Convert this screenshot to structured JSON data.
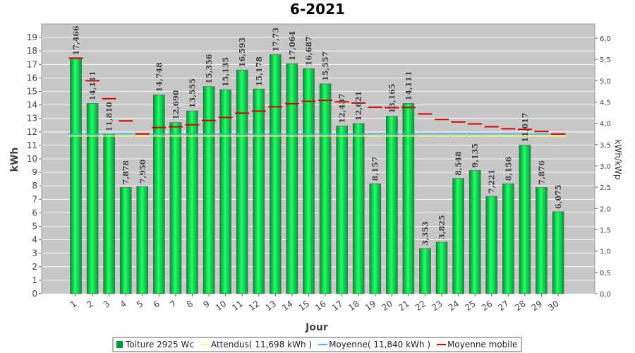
{
  "chart_data": {
    "type": "bar",
    "title": "6-2021",
    "xlabel": "Jour",
    "ylabel": "kWh",
    "y2label": "kWh/kWp",
    "ylim": [
      0,
      20
    ],
    "y_ticks": [
      "0",
      "1",
      "2",
      "3",
      "4",
      "5",
      "6",
      "7",
      "8",
      "9",
      "10",
      "11",
      "12",
      "13",
      "14",
      "15",
      "16",
      "17",
      "18",
      "19"
    ],
    "y2_ticks": [
      "0,0",
      "0,5",
      "1,0",
      "1,5",
      "2,0",
      "2,5",
      "3,0",
      "3,5",
      "4,0",
      "4,5",
      "5,0",
      "5,5",
      "6,0"
    ],
    "y2lim": [
      0,
      6.33
    ],
    "grid": true,
    "legend_position": "bottom",
    "categories": [
      "1",
      "2",
      "3",
      "4",
      "5",
      "6",
      "7",
      "8",
      "9",
      "10",
      "11",
      "12",
      "13",
      "14",
      "15",
      "16",
      "17",
      "18",
      "19",
      "20",
      "21",
      "22",
      "23",
      "24",
      "25",
      "26",
      "27",
      "28",
      "29",
      "30"
    ],
    "value_labels": [
      "17,466",
      "14,111",
      "11,810",
      "7,878",
      "7,950",
      "14,748",
      "12,690",
      "13,555",
      "15,356",
      "15,135",
      "16,593",
      "15,178",
      "17,73",
      "17,064",
      "16,687",
      "15,557",
      "12,437",
      "12,621",
      "8,157",
      "13,165",
      "14,111",
      "3,353",
      "3,825",
      "8,548",
      "9,135",
      "7,221",
      "8,156",
      "11,017",
      "7,876",
      "6,075"
    ],
    "series": [
      {
        "name": "Toiture 2925 Wc",
        "kind": "bar",
        "color": "#00dd55",
        "values": [
          17.466,
          14.111,
          11.81,
          7.878,
          7.95,
          14.748,
          12.69,
          13.555,
          15.356,
          15.135,
          16.593,
          15.178,
          17.73,
          17.064,
          16.687,
          15.557,
          12.437,
          12.621,
          8.157,
          13.165,
          14.111,
          3.353,
          3.825,
          8.548,
          9.135,
          7.221,
          8.156,
          11.017,
          7.876,
          6.075
        ]
      },
      {
        "name": "Attendus( 11,698 kWh )",
        "kind": "line",
        "color": "#ffff66",
        "values": [
          11.698,
          11.698,
          11.698,
          11.698,
          11.698,
          11.698,
          11.698,
          11.698,
          11.698,
          11.698,
          11.698,
          11.698,
          11.698,
          11.698,
          11.698,
          11.698,
          11.698,
          11.698,
          11.698,
          11.698,
          11.698,
          11.698,
          11.698,
          11.698,
          11.698,
          11.698,
          11.698,
          11.698,
          11.698,
          11.698
        ]
      },
      {
        "name": "Moyenne( 11,840 kWh )",
        "kind": "line",
        "color": "#33bbee",
        "values": [
          11.84,
          11.84,
          11.84,
          11.84,
          11.84,
          11.84,
          11.84,
          11.84,
          11.84,
          11.84,
          11.84,
          11.84,
          11.84,
          11.84,
          11.84,
          11.84,
          11.84,
          11.84,
          11.84,
          11.84,
          11.84,
          11.84,
          11.84,
          11.84,
          11.84,
          11.84,
          11.84,
          11.84,
          11.84,
          11.84
        ]
      },
      {
        "name": "Moyenne mobile",
        "kind": "step",
        "color": "#dd0000",
        "values": [
          17.466,
          15.789,
          14.462,
          12.816,
          11.843,
          12.326,
          12.378,
          12.525,
          12.841,
          13.07,
          13.39,
          13.539,
          13.862,
          14.093,
          14.266,
          14.341,
          14.229,
          14.142,
          13.826,
          13.793,
          13.808,
          13.332,
          12.919,
          12.737,
          12.591,
          12.385,
          12.229,
          12.186,
          12.037,
          11.838
        ]
      }
    ]
  }
}
